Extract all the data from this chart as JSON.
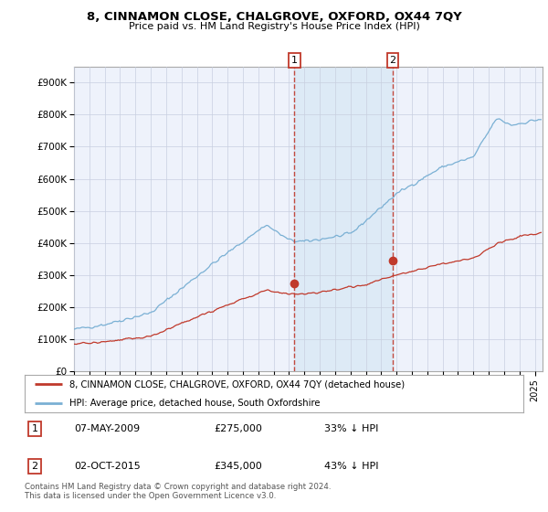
{
  "title": "8, CINNAMON CLOSE, CHALGROVE, OXFORD, OX44 7QY",
  "subtitle": "Price paid vs. HM Land Registry's House Price Index (HPI)",
  "legend_line1": "8, CINNAMON CLOSE, CHALGROVE, OXFORD, OX44 7QY (detached house)",
  "legend_line2": "HPI: Average price, detached house, South Oxfordshire",
  "transaction1_date": "07-MAY-2009",
  "transaction1_price": "£275,000",
  "transaction1_hpi": "33% ↓ HPI",
  "transaction2_date": "02-OCT-2015",
  "transaction2_price": "£345,000",
  "transaction2_hpi": "43% ↓ HPI",
  "footer": "Contains HM Land Registry data © Crown copyright and database right 2024.\nThis data is licensed under the Open Government Licence v3.0.",
  "hpi_color": "#7ab0d4",
  "price_color": "#c0392b",
  "marker_color": "#c0392b",
  "shade_color": "#d6e8f5",
  "background_color": "#f0f4ff",
  "plot_bg_color": "#eef2fb",
  "grid_color": "#c8cfe0",
  "ylim": [
    0,
    950000
  ],
  "yticks": [
    0,
    100000,
    200000,
    300000,
    400000,
    500000,
    600000,
    700000,
    800000,
    900000
  ],
  "ytick_labels": [
    "£0",
    "£100K",
    "£200K",
    "£300K",
    "£400K",
    "£500K",
    "£600K",
    "£700K",
    "£800K",
    "£900K"
  ],
  "marker1_x": 2009.35,
  "marker1_y": 275000,
  "marker2_x": 2015.75,
  "marker2_y": 345000,
  "xlim_left": 1995.0,
  "xlim_right": 2025.5
}
